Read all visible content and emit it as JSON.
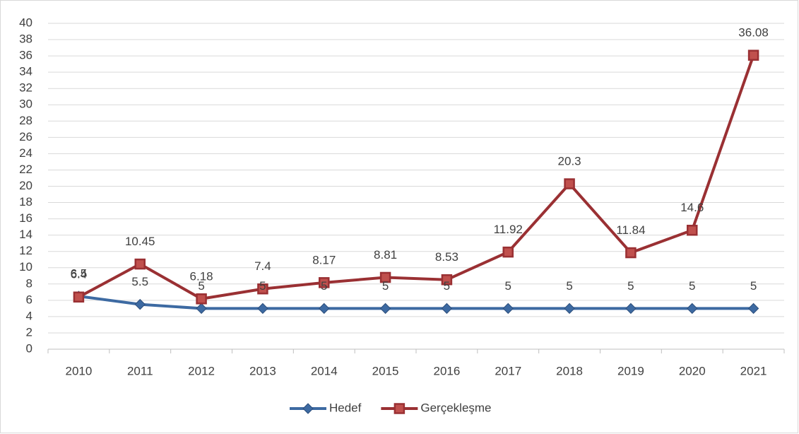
{
  "chart_data": {
    "type": "line",
    "categories": [
      "2010",
      "2011",
      "2012",
      "2013",
      "2014",
      "2015",
      "2016",
      "2017",
      "2018",
      "2019",
      "2020",
      "2021"
    ],
    "series": [
      {
        "name": "Hedef",
        "color": "#3d6aa2",
        "marker": "diamond",
        "values": [
          6.5,
          5.5,
          5,
          5,
          5,
          5,
          5,
          5,
          5,
          5,
          5,
          5
        ]
      },
      {
        "name": "Gerçekleşme",
        "color": "#9a3033",
        "marker": "square",
        "values": [
          6.4,
          10.45,
          6.18,
          7.4,
          8.17,
          8.81,
          8.53,
          11.92,
          20.3,
          11.84,
          14.6,
          36.08
        ]
      }
    ],
    "ylim": [
      0,
      40
    ],
    "yticks": [
      0,
      2,
      4,
      6,
      8,
      10,
      12,
      14,
      16,
      18,
      20,
      22,
      24,
      26,
      28,
      30,
      32,
      34,
      36,
      38,
      40
    ],
    "grid": true,
    "legend": "bottom"
  }
}
